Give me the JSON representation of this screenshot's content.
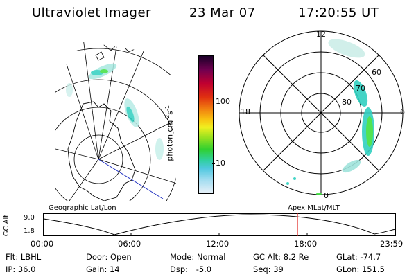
{
  "header": {
    "instrument": "Ultraviolet Imager",
    "date": "23 Mar 07",
    "time": "17:20:55 UT"
  },
  "colorbar": {
    "unit_label": "photon cm",
    "unit_exp1": "-2",
    "unit_mid": "s",
    "unit_exp2": "-1",
    "ticks": [
      "100",
      "10"
    ]
  },
  "polar_plot": {
    "mlt_labels": {
      "top": "12",
      "left": "18",
      "right": "6",
      "bottom": "0"
    },
    "lat_labels": [
      "60",
      "70",
      "80"
    ]
  },
  "map_labels": {
    "left": "Geographic Lat/Lon",
    "right": "Apex MLat/MLT"
  },
  "altitude_plot": {
    "ylabel": "GC Alt",
    "ymax": "9.0",
    "ymin": "1.8",
    "xticks": [
      "00:00",
      "06:00",
      "12:00",
      "18:00",
      "23:59"
    ]
  },
  "info": {
    "row1": [
      {
        "key": "Flt:",
        "val": "LBHL"
      },
      {
        "key": "Door:",
        "val": "Open"
      },
      {
        "key": "Mode:",
        "val": "Normal"
      },
      {
        "key": "GC Alt:",
        "val": "8.2 Re"
      },
      {
        "key": "GLat:",
        "val": "-74.7"
      }
    ],
    "row2": [
      {
        "key": "IP:",
        "val": "36.0"
      },
      {
        "key": "Gain:",
        "val": "14"
      },
      {
        "key": "Dsp:",
        "val": "-5.0"
      },
      {
        "key": "Seq:",
        "val": "39"
      },
      {
        "key": "GLon:",
        "val": "151.5"
      }
    ]
  },
  "colors": {
    "marker": "#e0201c",
    "projection_line": "#2030c0",
    "aurora_cyan": "#30d0c0",
    "aurora_green": "#40e040"
  }
}
